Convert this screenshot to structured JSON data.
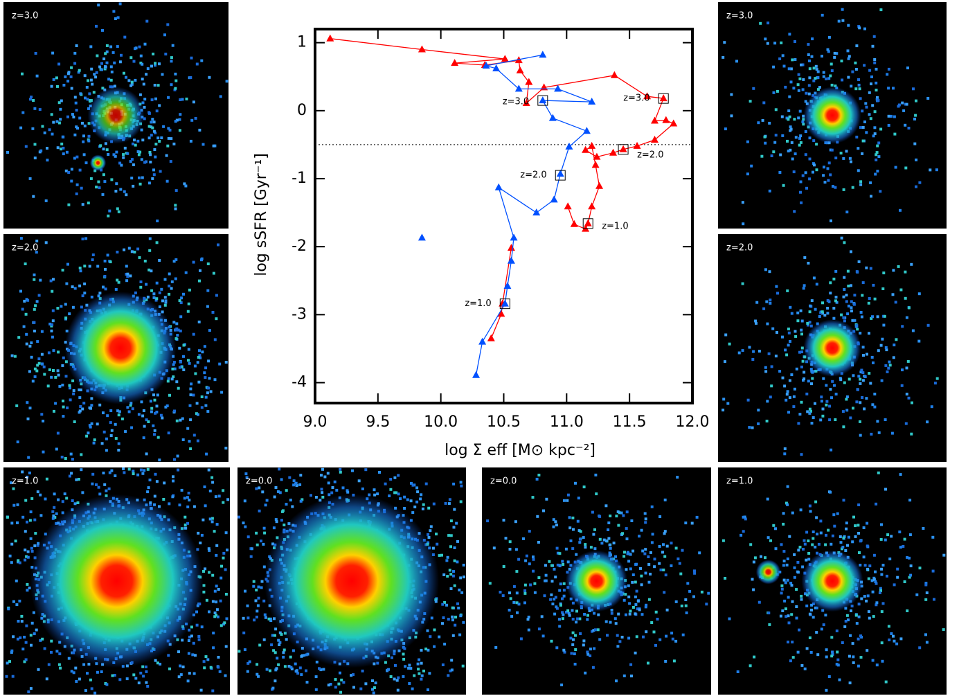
{
  "chart_data": {
    "type": "line",
    "xlabel": "log Σ eff [M⊙ kpc⁻²]",
    "ylabel": "log sSFR [Gyr⁻¹]",
    "xlim": [
      9,
      12
    ],
    "ylim": [
      -4.3,
      1.2
    ],
    "xticks": [
      {
        "value": 9,
        "label": "9.0"
      },
      9.5,
      {
        "value": 10,
        "label": "10.0"
      },
      10.5,
      {
        "value": 11,
        "label": "11.0"
      },
      11.5,
      {
        "value": 12,
        "label": "12.0"
      }
    ],
    "yticks": [
      -4,
      -3,
      -2,
      -1,
      0,
      1
    ],
    "hline": -0.5,
    "series": [
      {
        "color": "#ff0000",
        "x": [
          9.12,
          9.85,
          10.51,
          10.11,
          10.35,
          10.62,
          10.63,
          10.7,
          10.68,
          10.82,
          11.38,
          11.64,
          11.77,
          11.7,
          11.79,
          11.85,
          11.7,
          11.56,
          11.45,
          11.37,
          11.24,
          11.15,
          11.2,
          11.23,
          11.26,
          11.2,
          11.17,
          11.15,
          11.06,
          11.01,
          null,
          10.56,
          10.49,
          10.48,
          10.4
        ],
        "values": [
          1.06,
          0.9,
          0.76,
          0.7,
          0.67,
          0.74,
          0.59,
          0.42,
          0.11,
          0.34,
          0.52,
          0.21,
          0.18,
          -0.15,
          -0.14,
          -0.19,
          -0.43,
          -0.52,
          -0.57,
          -0.62,
          -0.68,
          -0.58,
          -0.52,
          -0.8,
          -1.11,
          -1.41,
          -1.66,
          -1.74,
          -1.67,
          -1.41,
          null,
          -2.02,
          -2.84,
          -2.99,
          -3.35
        ]
      },
      {
        "color": "#0050ff",
        "x": [
          10.81,
          10.36,
          10.44,
          10.62,
          10.93,
          11.2,
          10.81,
          10.89,
          11.16,
          11.02,
          10.95,
          10.9,
          10.76,
          10.46,
          10.58,
          10.56,
          10.53,
          10.51,
          10.33,
          10.28,
          null,
          9.85
        ],
        "values": [
          0.82,
          0.66,
          0.62,
          0.32,
          0.32,
          0.13,
          0.15,
          -0.11,
          -0.3,
          -0.53,
          -0.93,
          -1.31,
          -1.5,
          -1.13,
          -1.87,
          -2.21,
          -2.58,
          -2.84,
          -3.4,
          -3.89,
          null,
          -1.87
        ]
      }
    ],
    "annotations": [
      {
        "text": "z=3.0",
        "x": 11.77,
        "y": 0.18
      },
      {
        "text": "z=2.0",
        "x": 11.45,
        "y": -0.57
      },
      {
        "text": "z=1.0",
        "x": 11.17,
        "y": -1.66
      },
      {
        "text": "z=3.0",
        "x": 10.81,
        "y": 0.15
      },
      {
        "text": "z=2.0",
        "x": 10.95,
        "y": -0.95
      },
      {
        "text": "z=1.0",
        "x": 10.51,
        "y": -2.84
      }
    ]
  },
  "panels": [
    {
      "label": "z=3.0"
    },
    {
      "label": "z=2.0"
    },
    {
      "label": "z=1.0"
    },
    {
      "label": "z=0.0"
    },
    {
      "label": "z=0.0"
    },
    {
      "label": "z=1.0"
    },
    {
      "label": "z=2.0"
    },
    {
      "label": "z=3.0"
    }
  ]
}
